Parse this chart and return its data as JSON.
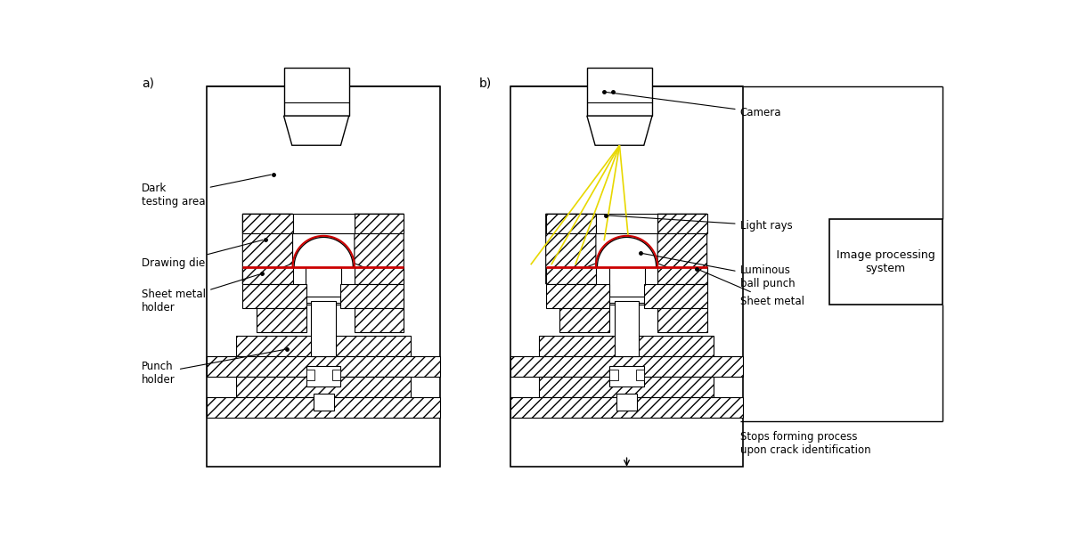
{
  "bg_color": "#ffffff",
  "line_color": "#000000",
  "red_color": "#cc0000",
  "yellow_color": "#e8d800",
  "title_a": "a)",
  "title_b": "b)",
  "label_dark": "Dark\ntesting area",
  "label_die": "Drawing die",
  "label_holder": "Sheet metal\nholder",
  "label_punch": "Punch\nholder",
  "label_camera": "Camera",
  "label_rays": "Light rays",
  "label_ball": "Luminous\nball punch",
  "label_sheet": "Sheet metal",
  "box_label": "Image processing\nsystem",
  "bottom_label": "Stops forming process\nupon crack identification"
}
